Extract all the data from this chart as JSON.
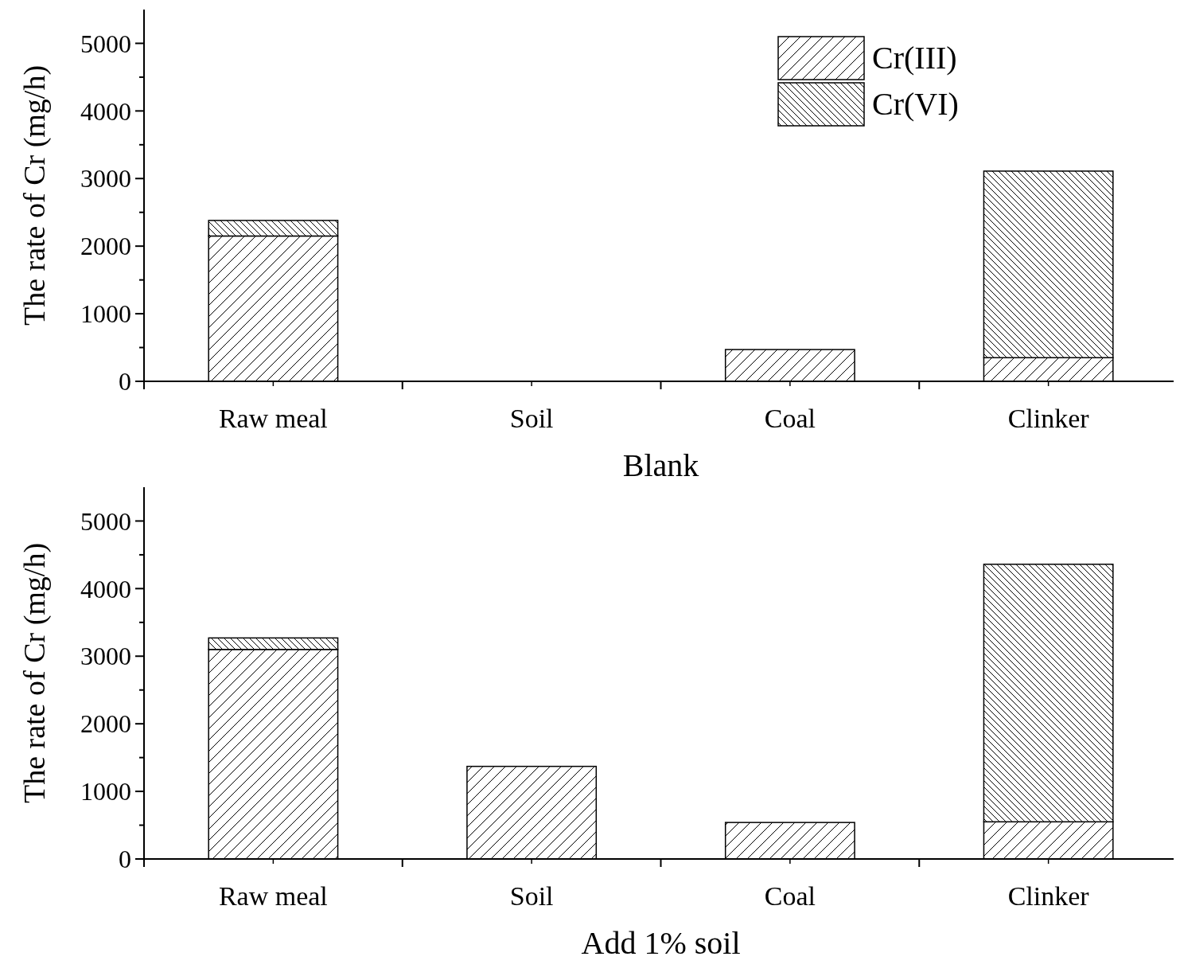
{
  "chart_data": [
    {
      "type": "bar",
      "stacked": true,
      "xlabel": "Blank",
      "ylabel": "The rate of Cr (mg/h)",
      "categories": [
        "Raw meal",
        "Soil",
        "Coal",
        "Clinker"
      ],
      "ylim": [
        0,
        5500
      ],
      "yticks": [
        0,
        {
          "value": 500,
          "label": null
        },
        1000,
        {
          "value": 1500,
          "label": null
        },
        2000,
        {
          "value": 2500,
          "label": null
        },
        3000,
        {
          "value": 3500,
          "label": null
        },
        4000,
        {
          "value": 4500,
          "label": null
        },
        5000
      ],
      "legend": "top right",
      "series": [
        {
          "name": "Cr(III)",
          "color": "#000000",
          "values": [
            2150,
            0,
            470,
            350
          ]
        },
        {
          "name": "Cr(VI)",
          "color": "#000000",
          "values": [
            230,
            0,
            0,
            2760
          ]
        }
      ]
    },
    {
      "type": "bar",
      "stacked": true,
      "xlabel": "Add 1% soil",
      "ylabel": "The rate of Cr (mg/h)",
      "categories": [
        "Raw meal",
        "Soil",
        "Coal",
        "Clinker"
      ],
      "ylim": [
        0,
        5500
      ],
      "yticks": [
        0,
        {
          "value": 500,
          "label": null
        },
        1000,
        {
          "value": 1500,
          "label": null
        },
        2000,
        {
          "value": 2500,
          "label": null
        },
        3000,
        {
          "value": 3500,
          "label": null
        },
        4000,
        {
          "value": 4500,
          "label": null
        },
        5000
      ],
      "series": [
        {
          "color": "#000000",
          "values": [
            3100,
            1370,
            540,
            550
          ]
        },
        {
          "color": "#000000",
          "values": [
            170,
            0,
            0,
            3810
          ]
        }
      ]
    }
  ]
}
